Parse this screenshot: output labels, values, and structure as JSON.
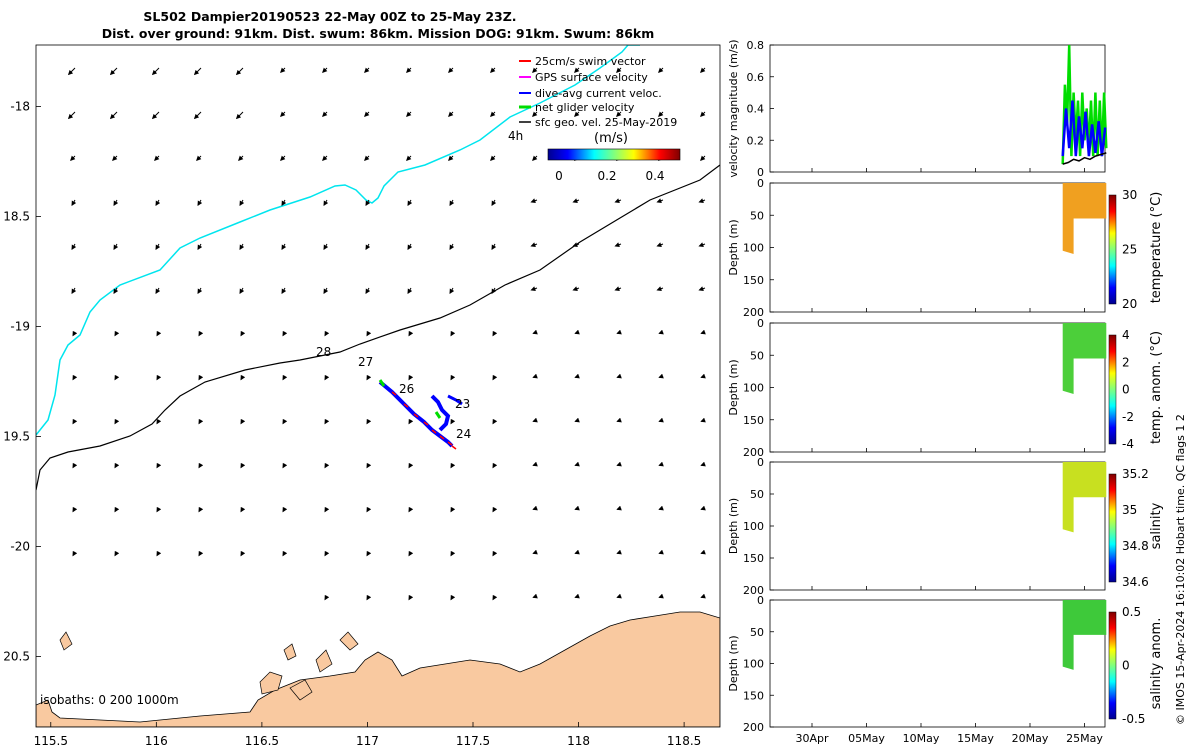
{
  "header": {
    "title_line1": "SL502 Dampier20190523 22-May 00Z to 25-May 23Z.",
    "title_line2": "Dist. over ground: 91km. Dist. swum: 86km. Mission DOG: 91km. Swum: 86km"
  },
  "map": {
    "xlim": [
      115.43,
      118.67
    ],
    "ylim": [
      -20.82,
      -17.72
    ],
    "x_ticks": [
      115.5,
      116,
      116.5,
      117,
      117.5,
      118,
      118.5
    ],
    "x_tick_labels": [
      "115.5",
      "116",
      "116.5",
      "117",
      "117.5",
      "118",
      "118.5"
    ],
    "y_ticks": [
      -18,
      -18.5,
      -19,
      -19.5,
      -20,
      -20.5
    ],
    "y_tick_labels": [
      "-18",
      "18.5",
      "-19",
      "19.5",
      "-20",
      "20.5"
    ],
    "legend": {
      "entries": [
        {
          "label": "25cm/s swim vector",
          "color": "#ff0000"
        },
        {
          "label": "GPS surface velocity",
          "color": "#ff00ff"
        },
        {
          "label": "dive-avg current veloc.",
          "color": "#0000ff"
        },
        {
          "label": "net glider velocity",
          "color": "#00dd00"
        },
        {
          "label": "sfc geo. vel. 25-May-2019",
          "color": "#000000"
        }
      ],
      "scale_label": "4h",
      "colorbar_title": "(m/s)",
      "colorbar_ticks": [
        "0",
        "0.2",
        "0.4"
      ]
    },
    "day_labels": [
      "28",
      "27",
      "26",
      "23",
      "24"
    ],
    "isobaths_label": "isobaths: 0   200  1000m",
    "colors": {
      "land": "#f9c9a0",
      "isobath_200": "#00e5ee",
      "isobath_1000": "#000000"
    }
  },
  "chart_data": [
    {
      "type": "line",
      "ylabel": "velocity magnitude (m/s)",
      "ylim": [
        0,
        0.8
      ],
      "y_tick_labels": [
        "0",
        "0.2",
        "0.4",
        "0.6",
        "0.8"
      ],
      "series": [
        {
          "color": "#00dd00",
          "x": [
            22.0,
            22.2,
            22.4,
            22.6,
            22.8,
            23.0,
            23.2,
            23.4,
            23.6,
            23.8,
            24.0,
            24.2,
            24.4,
            24.6,
            24.8,
            25.0,
            25.2,
            25.4,
            25.6,
            25.8,
            26.0
          ],
          "values": [
            0.05,
            0.55,
            0.3,
            0.8,
            0.1,
            0.5,
            0.2,
            0.45,
            0.1,
            0.5,
            0.2,
            0.4,
            0.15,
            0.45,
            0.1,
            0.5,
            0.1,
            0.45,
            0.1,
            0.5,
            0.15
          ]
        },
        {
          "color": "#0000ff",
          "x": [
            22.0,
            22.3,
            22.6,
            22.9,
            23.2,
            23.5,
            23.8,
            24.1,
            24.4,
            24.7,
            25.0,
            25.3,
            25.6,
            25.9
          ],
          "values": [
            0.1,
            0.4,
            0.15,
            0.45,
            0.1,
            0.35,
            0.15,
            0.38,
            0.1,
            0.3,
            0.12,
            0.32,
            0.1,
            0.28
          ]
        },
        {
          "color": "#000000",
          "x": [
            22.0,
            22.5,
            23.0,
            23.5,
            24.0,
            24.5,
            25.0,
            25.5,
            26.0
          ],
          "values": [
            0.05,
            0.06,
            0.08,
            0.07,
            0.09,
            0.08,
            0.1,
            0.11,
            0.12
          ]
        }
      ]
    },
    {
      "type": "heatmap",
      "ylabel": "Depth (m)",
      "colorbar_label": "temperature (°C)",
      "ylim": [
        200,
        0
      ],
      "clim_ticks": [
        "30",
        "25",
        "20"
      ],
      "fill_color": "#f0a020"
    },
    {
      "type": "heatmap",
      "ylabel": "Depth (m)",
      "colorbar_label": "temp. anom. (°C)",
      "ylim": [
        200,
        0
      ],
      "clim_ticks": [
        "4",
        "2",
        "0",
        "-2",
        "-4"
      ],
      "fill_color": "#4ccf3a"
    },
    {
      "type": "heatmap",
      "ylabel": "Depth (m)",
      "colorbar_label": "salinity",
      "ylim": [
        200,
        0
      ],
      "clim_ticks": [
        "35.2",
        "35",
        "34.8",
        "34.6"
      ],
      "fill_color": "#c8e020"
    },
    {
      "type": "heatmap",
      "ylabel": "Depth (m)",
      "colorbar_label": "salinity anom.",
      "ylim": [
        200,
        0
      ],
      "clim_ticks": [
        "0.5",
        "0",
        "-0.5"
      ],
      "fill_color": "#3ec93a"
    }
  ],
  "side_panels": {
    "depth_tick_labels": [
      "0",
      "50",
      "100",
      "150",
      "200"
    ],
    "time_tick_labels": [
      "30Apr",
      "05May",
      "10May",
      "15May",
      "20May",
      "25May"
    ],
    "credit": "© IMOS 15-Apr-2024 16:10:02 Hobart time. QC flags 1  2"
  }
}
